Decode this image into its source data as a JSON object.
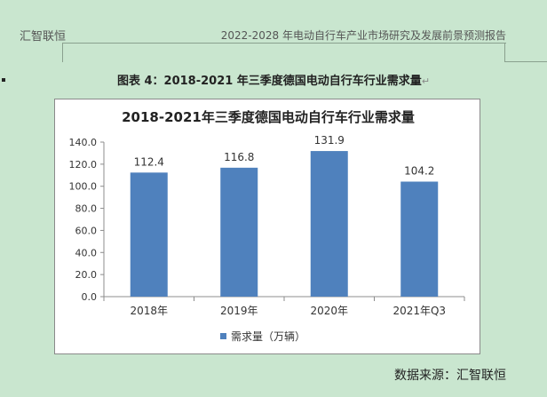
{
  "header": {
    "left": "汇智联恒",
    "right": "2022-2028 年电动自行车产业市场研究及发展前景预测报告"
  },
  "figure": {
    "caption": "图表  4：2018-2021 年三季度德国电动自行车行业需求量",
    "return_mark": "↵"
  },
  "chart_data": {
    "type": "bar",
    "title": "2018-2021年三季度德国电动自行车行业需求量",
    "categories": [
      "2018年",
      "2019年",
      "2020年",
      "2021年Q3"
    ],
    "series": [
      {
        "name": "需求量（万辆）",
        "values": [
          112.4,
          116.8,
          131.9,
          104.2
        ],
        "color": "#4f81bd"
      }
    ],
    "data_labels": [
      "112.4",
      "116.8",
      "131.9",
      "104.2"
    ],
    "ylim": [
      0,
      140
    ],
    "yticks": [
      "0.0",
      "20.0",
      "40.0",
      "60.0",
      "80.0",
      "100.0",
      "120.0",
      "140.0"
    ],
    "legend_position": "bottom",
    "xlabel": "",
    "ylabel": ""
  },
  "source": "数据来源：汇智联恒"
}
